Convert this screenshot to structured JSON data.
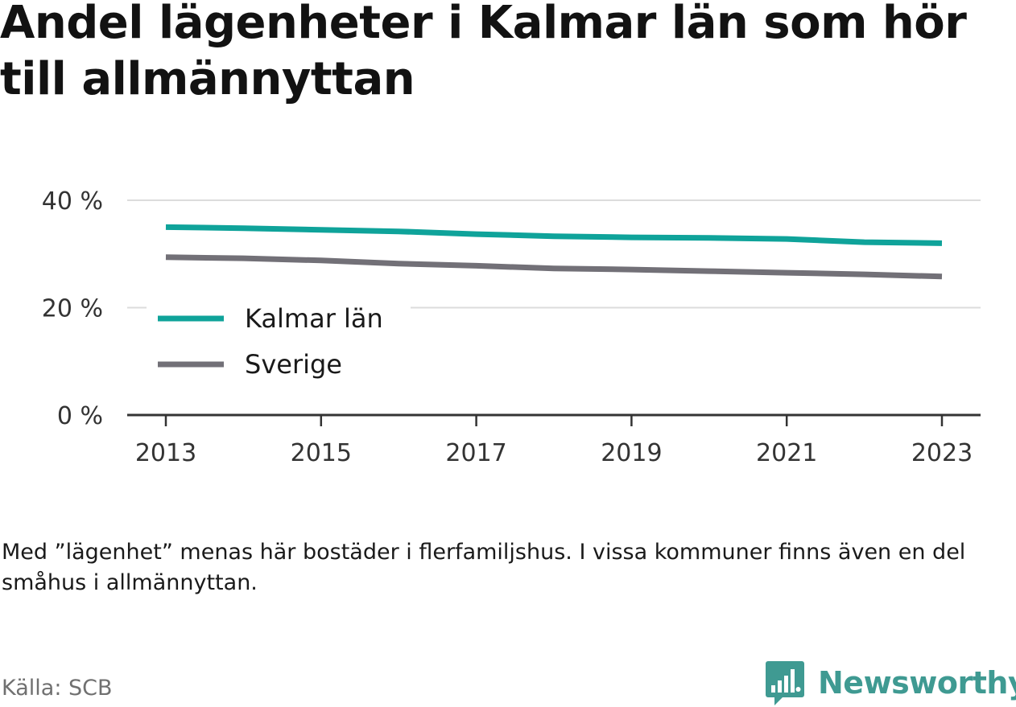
{
  "title": "Andel lägenheter i Kalmar län som hör till allmännyttan",
  "note": "Med ”lägenhet” menas här bostäder i flerfamiljshus. I vissa kommuner finns även en del småhus i allmännyttan.",
  "source": "Källa: SCB",
  "brand": "Newsworthy",
  "colors": {
    "kalmar": "#0fa39a",
    "sverige": "#727077",
    "grid": "#dcdcdc",
    "axis": "#333333",
    "brand": "#3f9a92"
  },
  "chart_data": {
    "type": "line",
    "x": [
      2013,
      2014,
      2015,
      2016,
      2017,
      2018,
      2019,
      2020,
      2021,
      2022,
      2023
    ],
    "xticks": [
      "2013",
      "2015",
      "2017",
      "2019",
      "2021",
      "2023"
    ],
    "yticks": [
      "0 %",
      "20 %",
      "40 %"
    ],
    "ylim": [
      0,
      40
    ],
    "grid": true,
    "legend_position": "inside-left",
    "series": [
      {
        "name": "Kalmar län",
        "values": [
          35.0,
          34.8,
          34.5,
          34.2,
          33.7,
          33.3,
          33.1,
          33.0,
          32.8,
          32.2,
          32.0
        ]
      },
      {
        "name": "Sverige",
        "values": [
          29.4,
          29.2,
          28.8,
          28.2,
          27.8,
          27.3,
          27.1,
          26.8,
          26.5,
          26.2,
          25.8
        ]
      }
    ]
  }
}
